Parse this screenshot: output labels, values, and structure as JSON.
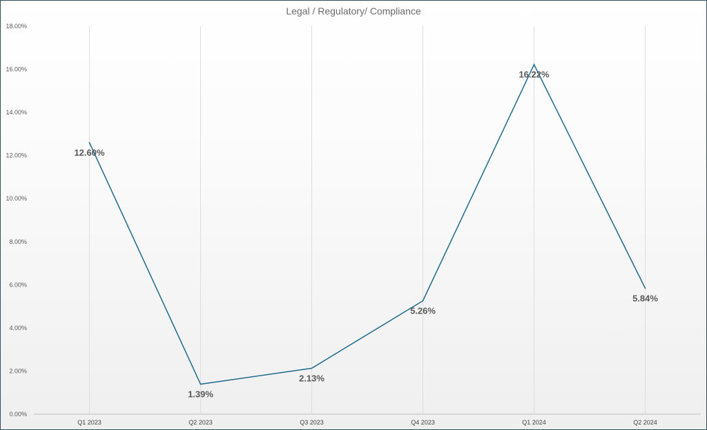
{
  "chart_data": {
    "type": "line",
    "title": "Legal / Regulatory/ Compliance",
    "categories": [
      "Q1 2023",
      "Q2 2023",
      "Q3 2023",
      "Q4 2023",
      "Q1 2024",
      "Q2 2024"
    ],
    "values": [
      12.6,
      1.39,
      2.13,
      5.26,
      16.22,
      5.84
    ],
    "data_labels": [
      "12.60%",
      "1.39%",
      "2.13%",
      "5.26%",
      "16.22%",
      "5.84%"
    ],
    "yticks": [
      "0.00%",
      "2.00%",
      "4.00%",
      "6.00%",
      "8.00%",
      "10.00%",
      "12.00%",
      "14.00%",
      "16.00%",
      "18.00%"
    ],
    "ylim": [
      0,
      18
    ],
    "xlabel": "",
    "ylabel": "",
    "grid": "vertical",
    "colors": {
      "line": "#1f6a8a",
      "grid": "#dddddd",
      "axis": "#bfbfbf",
      "border": "#2f4f5f"
    }
  }
}
